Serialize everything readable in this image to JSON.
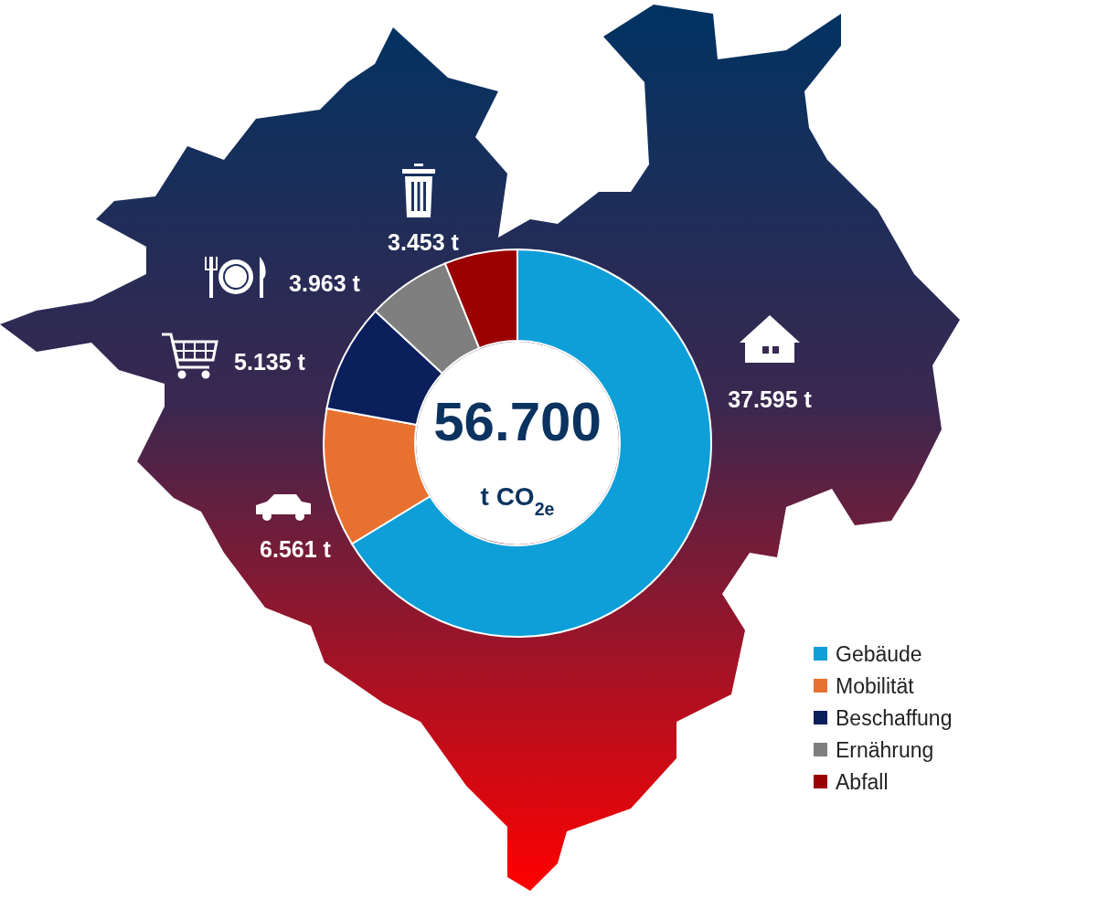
{
  "chart_data": {
    "type": "donut",
    "categories": [
      "Gebäude",
      "Mobilität",
      "Beschaffung",
      "Ernährung",
      "Abfall"
    ],
    "values": [
      37.595,
      6.561,
      5.135,
      3.963,
      3.453
    ],
    "colors": [
      "#0f9fd8",
      "#e87130",
      "#0b1f5c",
      "#7f7f7f",
      "#9a0000"
    ],
    "value_labels": [
      "37.595 t",
      "6.561 t",
      "5.135 t",
      "3.963 t",
      "3.453 t"
    ],
    "annotations": [
      "56.700",
      "t CO$_{2e}$"
    ],
    "legend": "bottom right"
  }
}
